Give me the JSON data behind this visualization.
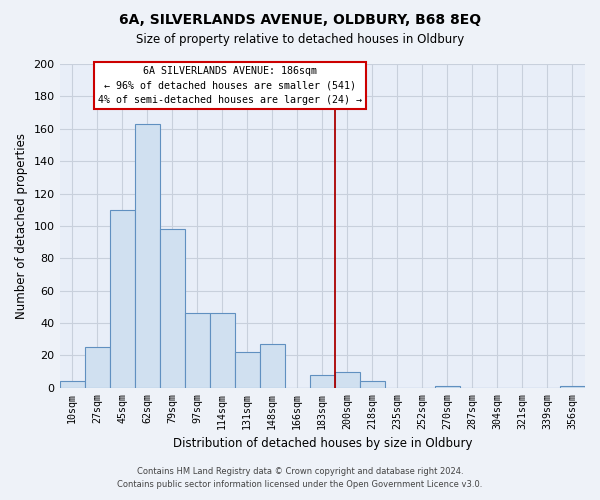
{
  "title": "6A, SILVERLANDS AVENUE, OLDBURY, B68 8EQ",
  "subtitle": "Size of property relative to detached houses in Oldbury",
  "xlabel": "Distribution of detached houses by size in Oldbury",
  "ylabel": "Number of detached properties",
  "bar_labels": [
    "10sqm",
    "27sqm",
    "45sqm",
    "62sqm",
    "79sqm",
    "97sqm",
    "114sqm",
    "131sqm",
    "148sqm",
    "166sqm",
    "183sqm",
    "200sqm",
    "218sqm",
    "235sqm",
    "252sqm",
    "270sqm",
    "287sqm",
    "304sqm",
    "321sqm",
    "339sqm",
    "356sqm"
  ],
  "bar_values": [
    4,
    25,
    110,
    163,
    98,
    46,
    46,
    22,
    27,
    0,
    8,
    10,
    4,
    0,
    0,
    1,
    0,
    0,
    0,
    0,
    1
  ],
  "bar_color": "#d0e0f0",
  "bar_edgecolor": "#6090c0",
  "vline_x": 10.5,
  "vline_color": "#aa0000",
  "annotation_title": "6A SILVERLANDS AVENUE: 186sqm",
  "annotation_line1": "← 96% of detached houses are smaller (541)",
  "annotation_line2": "4% of semi-detached houses are larger (24) →",
  "annotation_box_edgecolor": "#cc0000",
  "ylim": [
    0,
    200
  ],
  "yticks": [
    0,
    20,
    40,
    60,
    80,
    100,
    120,
    140,
    160,
    180,
    200
  ],
  "footer_line1": "Contains HM Land Registry data © Crown copyright and database right 2024.",
  "footer_line2": "Contains public sector information licensed under the Open Government Licence v3.0.",
  "background_color": "#eef2f8",
  "plot_background_color": "#e8eef8",
  "grid_color": "#c8d0dc"
}
